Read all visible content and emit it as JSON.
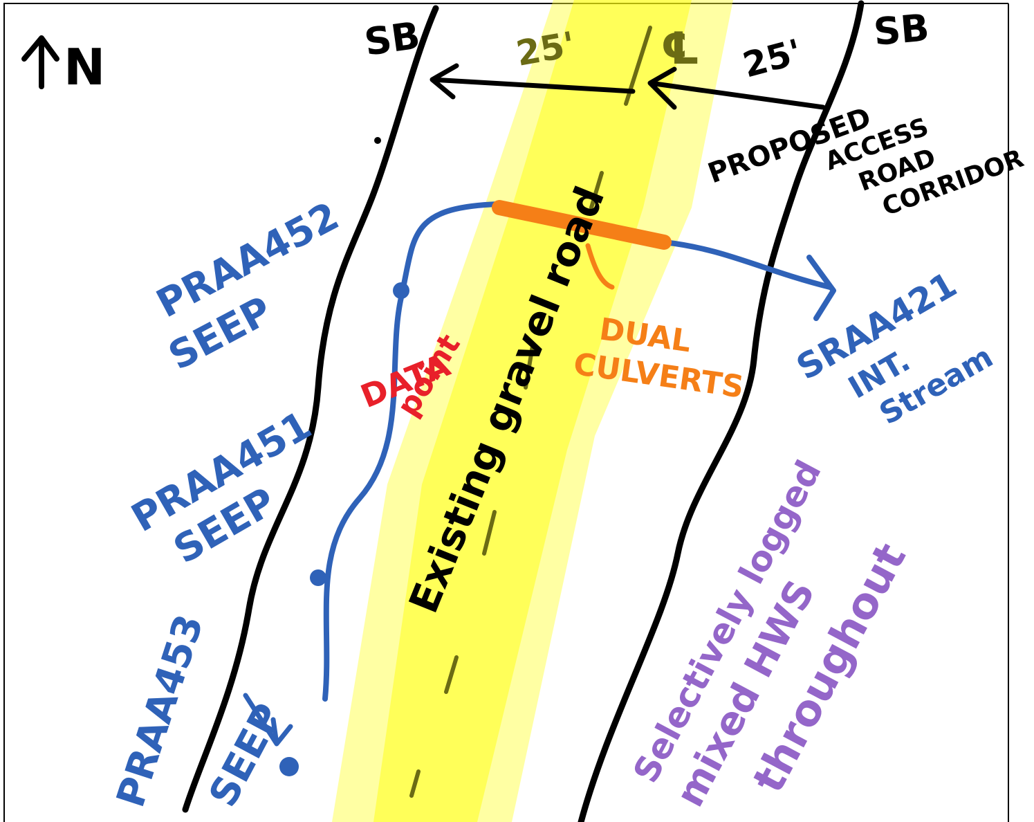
{
  "north": "N",
  "boundaries": [
    {
      "label": "SB"
    },
    {
      "label": "SB"
    }
  ],
  "offsets": [
    "25'",
    "25'"
  ],
  "centerline": "℄",
  "corridor": {
    "lines": [
      "PROPOSED",
      "ACCESS",
      "ROAD",
      "CORRIDOR"
    ]
  },
  "features": [
    {
      "lines": [
        "PRAA452",
        "SEEP"
      ]
    },
    {
      "lines": [
        "PRAA451",
        "SEEP"
      ]
    },
    {
      "lines": [
        "PRAA453",
        "SEEP"
      ]
    },
    {
      "lines": [
        "DATA",
        "point"
      ]
    },
    {
      "lines": [
        "Existing gravel road"
      ]
    },
    {
      "lines": [
        "DUAL",
        "CULVERTS"
      ]
    },
    {
      "lines": [
        "SRAA421",
        "INT.",
        "Stream"
      ]
    },
    {
      "lines": [
        "Selectively logged",
        "mixed HWS",
        "throughout"
      ]
    }
  ]
}
